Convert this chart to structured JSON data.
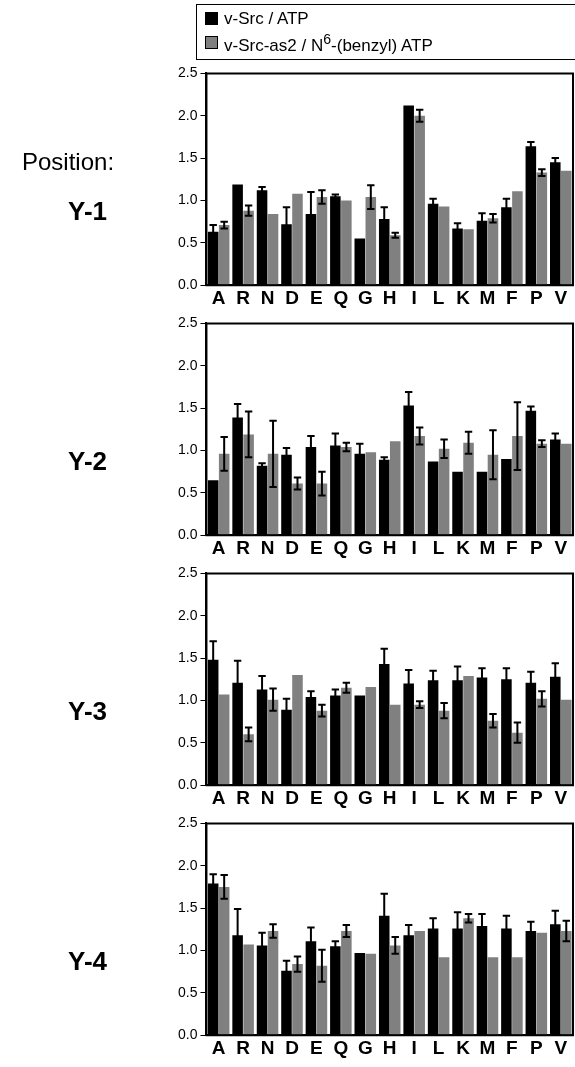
{
  "chart_data": [
    {
      "type": "bar",
      "title": "Y-1",
      "annotations": [
        "Position:"
      ],
      "legend": "top",
      "grid": false,
      "categories": [
        "A",
        "R",
        "N",
        "D",
        "E",
        "Q",
        "G",
        "H",
        "I",
        "L",
        "K",
        "M",
        "F",
        "P",
        "V"
      ],
      "ylim": [
        0,
        2.5
      ],
      "yticks": [
        {
          "value": 0,
          "label": "0.0"
        },
        {
          "value": 0.5,
          "label": "0.5"
        },
        {
          "value": 1,
          "label": "1.0"
        },
        {
          "value": 1.5,
          "label": "1.5"
        },
        {
          "value": 2,
          "label": "2.0"
        },
        {
          "value": 2.5,
          "label": "2.5"
        }
      ],
      "series": [
        {
          "name": "v-Src / ATP",
          "color": "#000000",
          "values": [
            0.63,
            1.19,
            1.12,
            0.72,
            0.84,
            1.05,
            0.55,
            0.78,
            2.12,
            0.96,
            0.67,
            0.76,
            0.92,
            1.64,
            1.45
          ],
          "errors": [
            0.08,
            null,
            0.04,
            0.2,
            0.26,
            0.02,
            null,
            0.14,
            null,
            0.06,
            0.06,
            0.09,
            0.1,
            0.05,
            0.05
          ]
        },
        {
          "name": "v-Src-as2 / N$^{6}$-(benzyl) ATP",
          "color": "#808080",
          "values": [
            0.71,
            0.88,
            0.84,
            1.08,
            1.04,
            1.0,
            1.04,
            0.59,
            2.0,
            0.93,
            0.66,
            0.79,
            1.11,
            1.33,
            1.35
          ],
          "errors": [
            0.04,
            0.06,
            null,
            null,
            0.08,
            null,
            0.14,
            0.03,
            0.07,
            null,
            null,
            0.05,
            null,
            0.04,
            null
          ]
        }
      ]
    },
    {
      "type": "bar",
      "title": "Y-2",
      "grid": false,
      "categories": [
        "A",
        "R",
        "N",
        "D",
        "E",
        "Q",
        "G",
        "H",
        "I",
        "L",
        "K",
        "M",
        "F",
        "P",
        "V"
      ],
      "ylim": [
        0,
        2.5
      ],
      "yticks": [
        {
          "value": 0,
          "label": "0.0"
        },
        {
          "value": 0.5,
          "label": "0.5"
        },
        {
          "value": 1,
          "label": "1.0"
        },
        {
          "value": 1.5,
          "label": "1.5"
        },
        {
          "value": 2,
          "label": "2.0"
        },
        {
          "value": 2.5,
          "label": "2.5"
        }
      ],
      "series": [
        {
          "color": "#000000",
          "values": [
            0.65,
            1.39,
            0.82,
            0.95,
            1.04,
            1.06,
            0.96,
            0.89,
            1.53,
            0.87,
            0.75,
            0.75,
            0.9,
            1.47,
            1.13
          ],
          "errors": [
            null,
            0.16,
            0.03,
            0.08,
            0.13,
            0.14,
            0.12,
            0.03,
            0.16,
            null,
            null,
            null,
            null,
            0.05,
            0.07
          ]
        },
        {
          "color": "#808080",
          "values": [
            0.96,
            1.19,
            0.96,
            0.61,
            0.61,
            1.04,
            0.98,
            1.11,
            1.17,
            1.02,
            1.09,
            0.95,
            1.17,
            1.08,
            1.08
          ],
          "errors": [
            0.2,
            0.27,
            0.39,
            0.07,
            0.14,
            0.05,
            null,
            null,
            0.1,
            0.11,
            0.13,
            0.29,
            0.4,
            0.04,
            null
          ]
        }
      ]
    },
    {
      "type": "bar",
      "title": "Y-3",
      "grid": false,
      "categories": [
        "A",
        "R",
        "N",
        "D",
        "E",
        "Q",
        "G",
        "H",
        "I",
        "L",
        "K",
        "M",
        "F",
        "P",
        "V"
      ],
      "ylim": [
        0,
        2.5
      ],
      "yticks": [
        {
          "value": 0,
          "label": "0.0"
        },
        {
          "value": 0.5,
          "label": "0.5"
        },
        {
          "value": 1,
          "label": "1.0"
        },
        {
          "value": 1.5,
          "label": "1.5"
        },
        {
          "value": 2,
          "label": "2.0"
        },
        {
          "value": 2.5,
          "label": "2.5"
        }
      ],
      "series": [
        {
          "color": "#000000",
          "values": [
            1.48,
            1.21,
            1.13,
            0.89,
            1.04,
            1.06,
            1.06,
            1.43,
            1.2,
            1.24,
            1.24,
            1.27,
            1.25,
            1.21,
            1.28
          ],
          "errors": [
            0.22,
            0.26,
            0.16,
            0.13,
            0.07,
            0.07,
            null,
            0.18,
            0.16,
            0.11,
            0.16,
            0.11,
            0.13,
            0.13,
            0.16
          ]
        },
        {
          "color": "#808080",
          "values": [
            1.07,
            0.6,
            1.01,
            1.3,
            0.88,
            1.15,
            1.16,
            0.95,
            0.95,
            0.88,
            1.29,
            0.76,
            0.62,
            1.02,
            1.01
          ],
          "errors": [
            null,
            0.08,
            0.13,
            null,
            0.07,
            0.06,
            null,
            null,
            0.04,
            0.09,
            null,
            0.08,
            0.12,
            0.09,
            null
          ]
        }
      ]
    },
    {
      "type": "bar",
      "title": "Y-4",
      "grid": false,
      "categories": [
        "A",
        "R",
        "N",
        "D",
        "E",
        "Q",
        "G",
        "H",
        "I",
        "L",
        "K",
        "M",
        "F",
        "P",
        "V"
      ],
      "ylim": [
        0,
        2.5
      ],
      "yticks": [
        {
          "value": 0,
          "label": "0.0"
        },
        {
          "value": 0.5,
          "label": "0.5"
        },
        {
          "value": 1,
          "label": "1.0"
        },
        {
          "value": 1.5,
          "label": "1.5"
        },
        {
          "value": 2,
          "label": "2.0"
        },
        {
          "value": 2.5,
          "label": "2.5"
        }
      ],
      "series": [
        {
          "color": "#000000",
          "values": [
            1.79,
            1.18,
            1.06,
            0.76,
            1.11,
            1.05,
            0.97,
            1.41,
            1.18,
            1.26,
            1.26,
            1.29,
            1.26,
            1.23,
            1.31
          ],
          "errors": [
            0.11,
            0.31,
            0.15,
            0.12,
            0.16,
            0.06,
            null,
            0.26,
            0.12,
            0.12,
            0.19,
            0.14,
            0.15,
            0.11,
            0.16
          ]
        },
        {
          "color": "#808080",
          "values": [
            1.75,
            1.07,
            1.23,
            0.84,
            0.82,
            1.23,
            0.96,
            1.06,
            1.23,
            0.92,
            1.38,
            0.92,
            0.92,
            1.21,
            1.23
          ],
          "errors": [
            0.14,
            null,
            0.08,
            0.09,
            0.19,
            0.07,
            null,
            0.1,
            null,
            null,
            0.05,
            null,
            null,
            null,
            0.12
          ]
        }
      ]
    }
  ]
}
